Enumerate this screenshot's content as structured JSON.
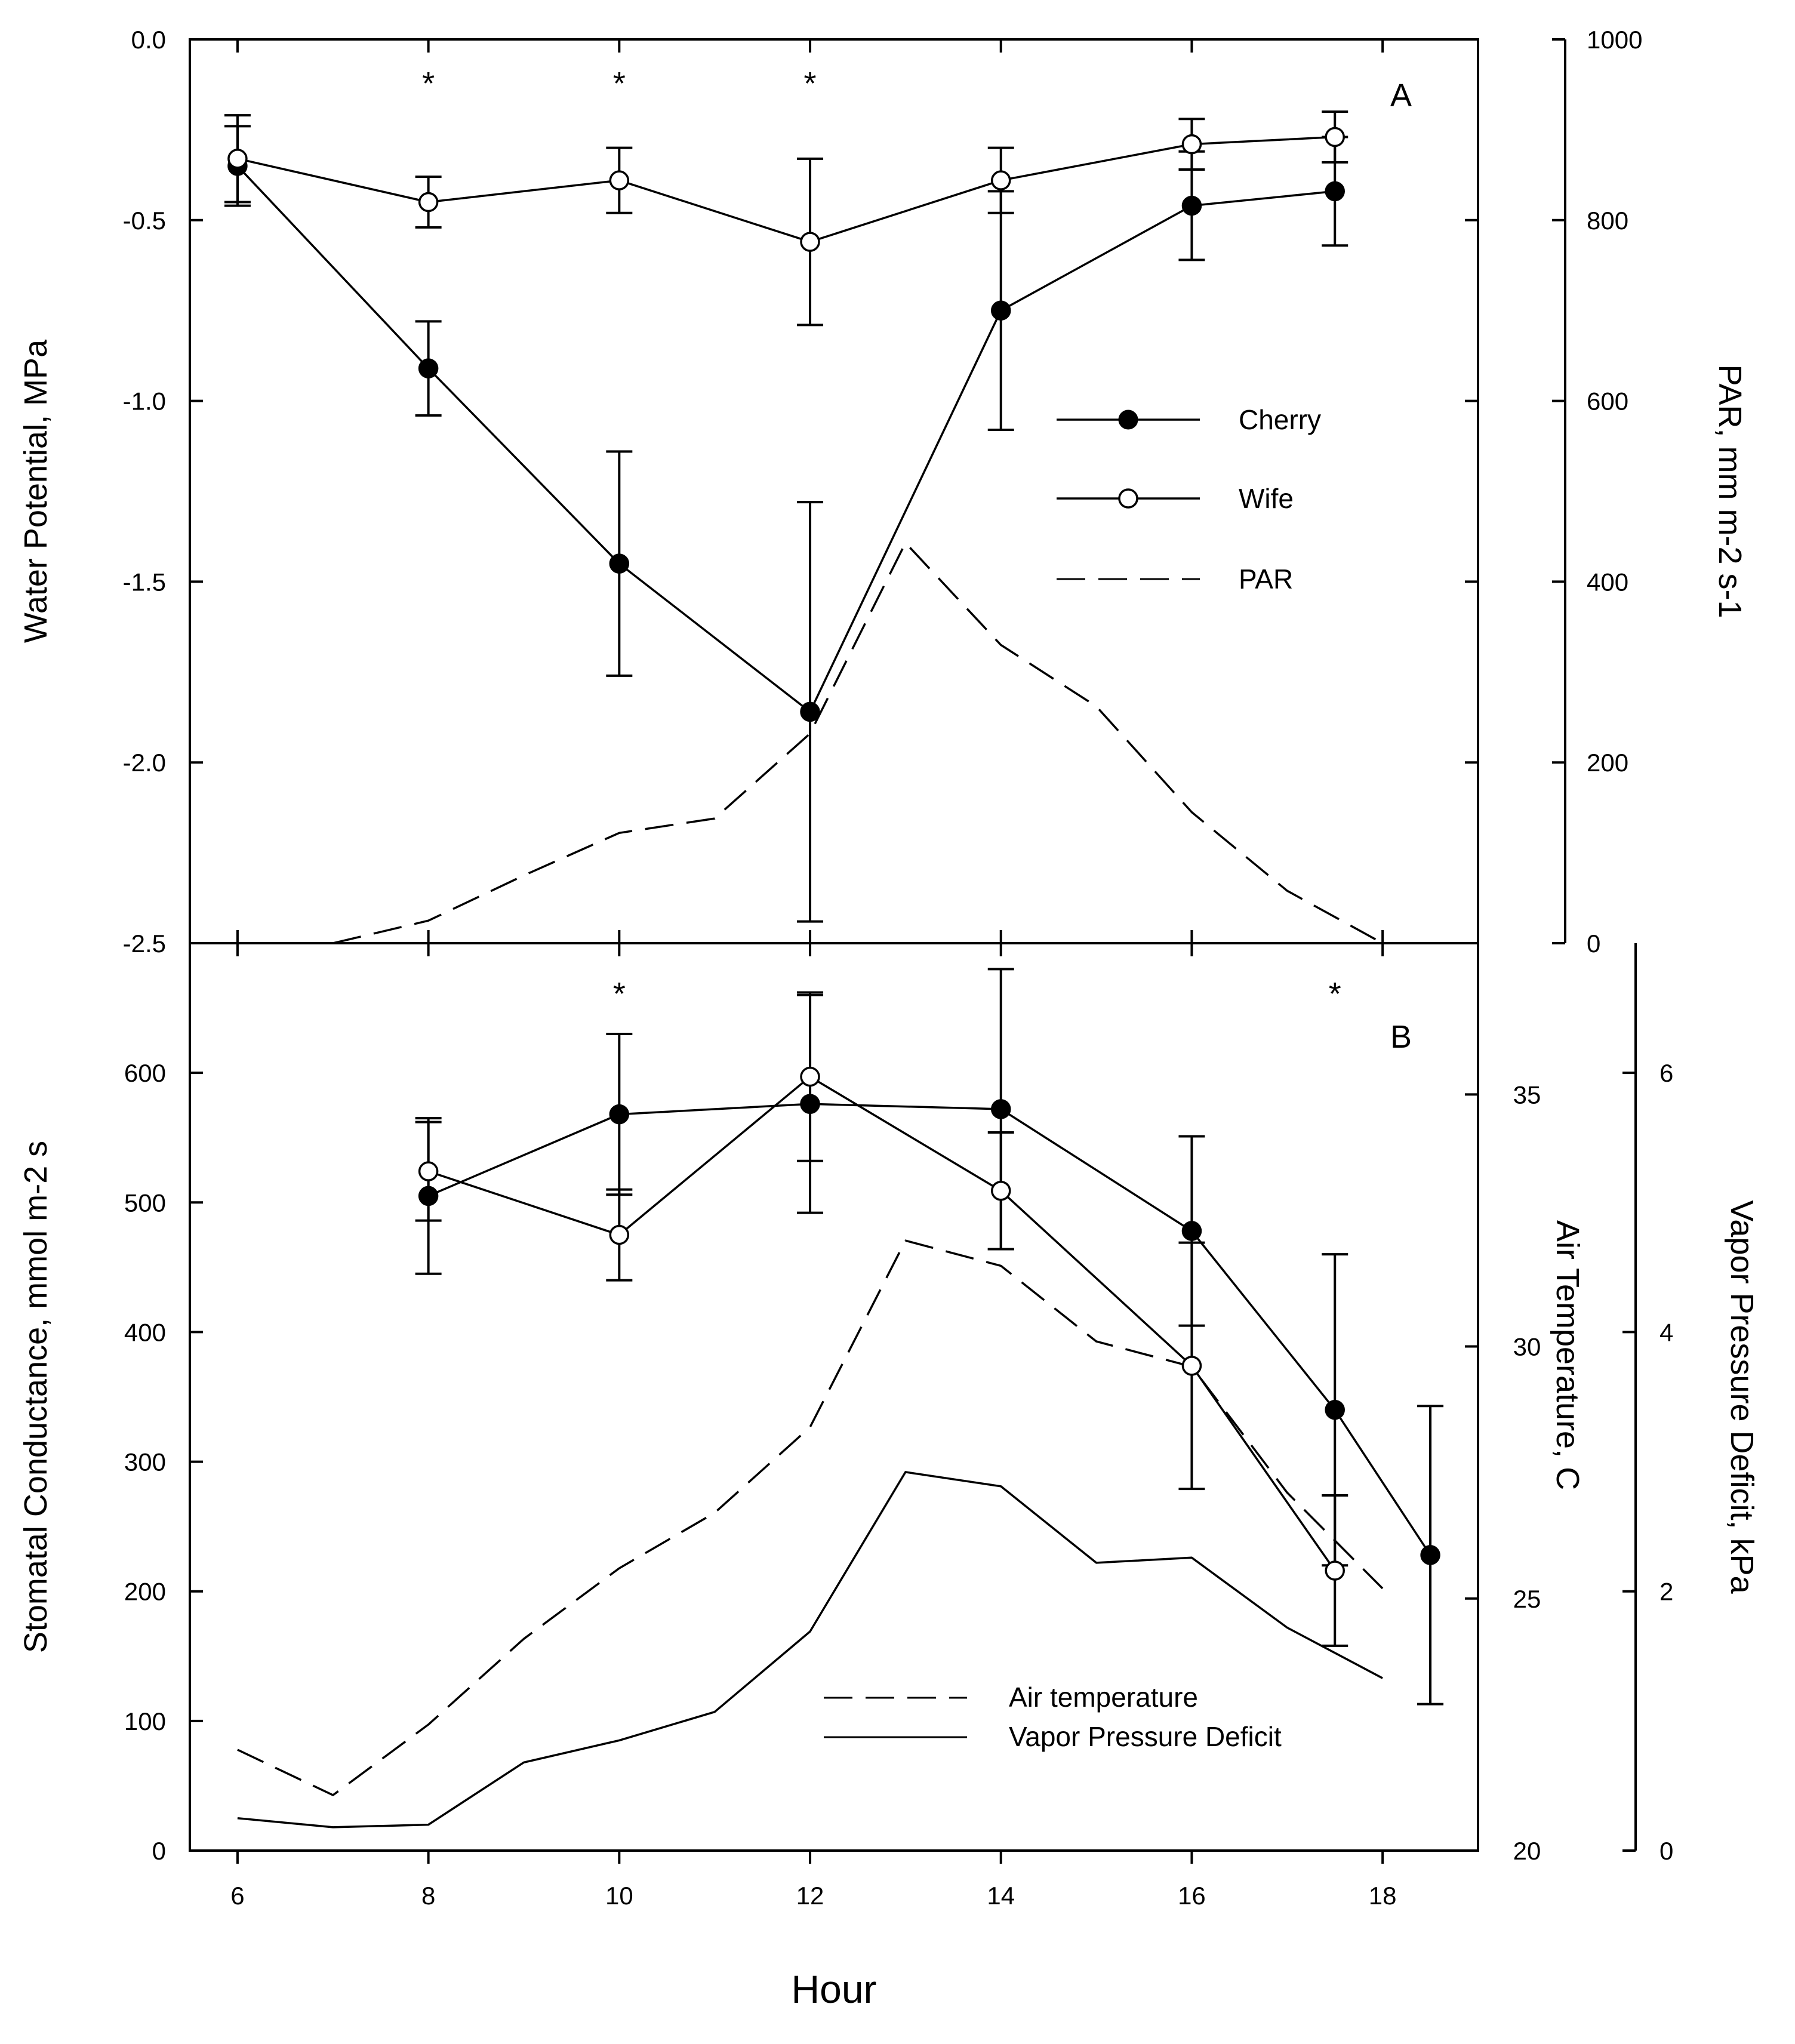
{
  "chart_data": [
    {
      "panel": "A",
      "type": "line",
      "xlabel": "Hour",
      "ylabel": "Water Potential, MPa",
      "y2label": "PAR, mm m-2 s-1",
      "ylim": [
        -2.5,
        0.0
      ],
      "y2lim": [
        0,
        1000
      ],
      "yticks": [
        "0.0",
        "-0.5",
        "-1.0",
        "-1.5",
        "-2.0",
        "-2.5"
      ],
      "y2ticks": [
        "1000",
        "800",
        "600",
        "400",
        "200",
        "0"
      ],
      "significance": [
        "*",
        "*",
        "*"
      ],
      "significance_x": [
        8,
        10,
        12
      ],
      "legend": [
        "Cherry",
        "Wife",
        "PAR"
      ],
      "series": [
        {
          "name": "Cherry",
          "marker": "filled-circle",
          "x": [
            6,
            8,
            10,
            12,
            14,
            16,
            17.5
          ],
          "y": [
            -0.35,
            -0.91,
            -1.45,
            -1.86,
            -0.75,
            -0.46,
            -0.42
          ],
          "err": [
            0.11,
            0.13,
            0.31,
            0.58,
            0.33,
            0.15,
            0.15
          ]
        },
        {
          "name": "Wife",
          "marker": "open-circle",
          "x": [
            6,
            8,
            10,
            12,
            14,
            16,
            17.5
          ],
          "y": [
            -0.33,
            -0.45,
            -0.39,
            -0.56,
            -0.39,
            -0.29,
            -0.27
          ],
          "err": [
            0.12,
            0.07,
            0.09,
            0.23,
            0.09,
            0.07,
            0.07
          ]
        },
        {
          "name": "PAR",
          "axis": "right",
          "style": "dashed",
          "x": [
            7,
            8,
            9,
            10,
            11,
            12,
            13,
            14,
            15,
            16,
            17,
            18
          ],
          "y": [
            0,
            25,
            75,
            122,
            138,
            232,
            443,
            330,
            262,
            145,
            58,
            0
          ]
        }
      ]
    },
    {
      "panel": "B",
      "type": "line",
      "xlabel": "Hour",
      "ylabel": "Stomatal Conductance, mmol m-2 s",
      "y2label": "Air Temperature, C",
      "y3label": "Vapor Pressure Deficit, kPa",
      "ylim": [
        0,
        700
      ],
      "y2lim": [
        20,
        38
      ],
      "y3lim": [
        0,
        7
      ],
      "xlim": [
        5.5,
        19
      ],
      "xticks": [
        "6",
        "8",
        "10",
        "12",
        "14",
        "16",
        "18"
      ],
      "yticks": [
        "0",
        "100",
        "200",
        "300",
        "400",
        "500",
        "600"
      ],
      "y2ticks": [
        "20",
        "25",
        "30",
        "35"
      ],
      "y3ticks": [
        "0",
        "2",
        "4",
        "6"
      ],
      "significance": [
        "*",
        "*"
      ],
      "significance_x": [
        10,
        17.5
      ],
      "legend": [
        "Air temperature",
        "Vapor Pressure Deficit"
      ],
      "series": [
        {
          "name": "Cherry",
          "marker": "filled-circle",
          "x": [
            8,
            10,
            12,
            14,
            16,
            17.5,
            18.5
          ],
          "y": [
            505,
            568,
            576,
            572,
            478,
            340,
            228
          ],
          "err": [
            60,
            62,
            84,
            108,
            73,
            120,
            115
          ]
        },
        {
          "name": "Wife",
          "marker": "open-circle",
          "x": [
            8,
            10,
            12,
            14,
            16,
            17.5
          ],
          "y": [
            524,
            475,
            597,
            509,
            374,
            216
          ],
          "err": [
            38,
            35,
            65,
            45,
            95,
            58
          ]
        },
        {
          "name": "Air temperature",
          "axis": "right",
          "style": "dashed",
          "x": [
            6,
            7,
            8,
            9,
            10,
            11,
            12,
            13,
            14,
            15,
            16,
            17,
            18
          ],
          "y": [
            22.0,
            21.1,
            22.5,
            24.2,
            25.6,
            26.7,
            28.4,
            32.1,
            31.6,
            30.1,
            29.6,
            27.1,
            25.2
          ]
        },
        {
          "name": "Vapor Pressure Deficit",
          "axis": "right2",
          "style": "solid",
          "x": [
            6,
            7,
            8,
            9,
            10,
            11,
            12,
            13,
            14,
            15,
            16,
            17,
            18
          ],
          "y": [
            0.25,
            0.18,
            0.2,
            0.68,
            0.85,
            1.07,
            1.69,
            2.92,
            2.81,
            2.22,
            2.26,
            1.72,
            1.33
          ]
        }
      ]
    }
  ]
}
